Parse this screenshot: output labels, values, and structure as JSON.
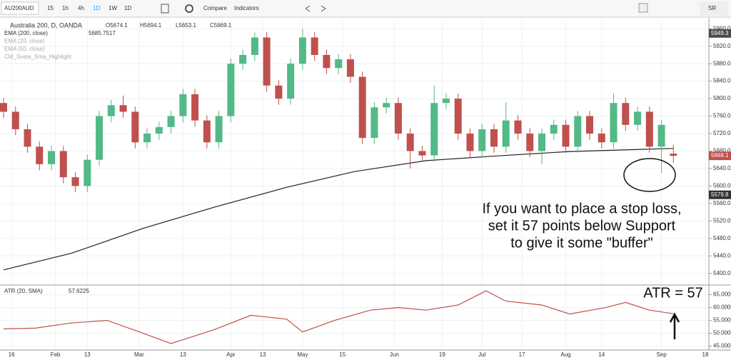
{
  "toolbar": {
    "symbol": "AU200AUD",
    "buttons": [
      "15",
      "1h",
      "4h",
      "1D",
      "1W",
      "1D",
      "Compare",
      "Indicators"
    ],
    "account": "SR"
  },
  "chart_data": [
    {
      "type": "candlestick",
      "title": "Australia 200, D, OANDA",
      "ohlc_labels": [
        "O5674.1",
        "H5694.1",
        "L5653.1",
        "C5669.1"
      ],
      "x": [
        0,
        3,
        6,
        9,
        12,
        15,
        18,
        21,
        24,
        27,
        30,
        33,
        36,
        39,
        42,
        45,
        48,
        51,
        54,
        57,
        60,
        63,
        66,
        69,
        72,
        75,
        78,
        81,
        84,
        87,
        90,
        93,
        96,
        99,
        102,
        105,
        108,
        111,
        114,
        117,
        120,
        123,
        126,
        129,
        132,
        135,
        138,
        141,
        144,
        147,
        150,
        153,
        156,
        159,
        162,
        165,
        168
      ],
      "open": [
        5790,
        5770,
        5730,
        5690,
        5650,
        5680,
        5620,
        5600,
        5660,
        5760,
        5785,
        5770,
        5700,
        5720,
        5735,
        5760,
        5810,
        5750,
        5700,
        5760,
        5880,
        5900,
        5940,
        5830,
        5800,
        5880,
        5940,
        5900,
        5870,
        5890,
        5850,
        5710,
        5780,
        5790,
        5720,
        5680,
        5670,
        5790,
        5800,
        5720,
        5680,
        5730,
        5690,
        5750,
        5720,
        5680,
        5720,
        5740,
        5690,
        5760,
        5720,
        5700,
        5790,
        5740,
        5770,
        5690,
        5674.1
      ],
      "high": [
        5802,
        5782,
        5742,
        5702,
        5692,
        5692,
        5632,
        5672,
        5772,
        5797,
        5807,
        5782,
        5732,
        5747,
        5772,
        5822,
        5822,
        5762,
        5772,
        5892,
        5912,
        5952,
        5952,
        5842,
        5892,
        5960,
        5952,
        5912,
        5902,
        5902,
        5862,
        5792,
        5802,
        5802,
        5732,
        5692,
        5830,
        5812,
        5812,
        5732,
        5742,
        5742,
        5792,
        5762,
        5732,
        5732,
        5752,
        5752,
        5772,
        5772,
        5732,
        5812,
        5802,
        5782,
        5782,
        5752,
        5694.1
      ],
      "low": [
        5756,
        5716,
        5676,
        5636,
        5636,
        5606,
        5586,
        5586,
        5646,
        5746,
        5756,
        5686,
        5686,
        5706,
        5721,
        5746,
        5736,
        5686,
        5686,
        5746,
        5866,
        5886,
        5816,
        5786,
        5786,
        5866,
        5886,
        5856,
        5856,
        5836,
        5696,
        5696,
        5766,
        5706,
        5640,
        5656,
        5656,
        5776,
        5706,
        5666,
        5666,
        5676,
        5676,
        5706,
        5666,
        5650,
        5706,
        5676,
        5676,
        5706,
        5686,
        5686,
        5726,
        5726,
        5676,
        5630,
        5653.1
      ],
      "close": [
        5770,
        5730,
        5690,
        5650,
        5680,
        5620,
        5600,
        5660,
        5760,
        5785,
        5770,
        5700,
        5720,
        5735,
        5760,
        5810,
        5750,
        5700,
        5760,
        5880,
        5900,
        5940,
        5830,
        5800,
        5880,
        5940,
        5900,
        5870,
        5890,
        5850,
        5710,
        5780,
        5790,
        5720,
        5680,
        5670,
        5790,
        5800,
        5720,
        5680,
        5730,
        5690,
        5750,
        5720,
        5680,
        5720,
        5740,
        5690,
        5760,
        5720,
        5700,
        5790,
        5740,
        5770,
        5690,
        5740,
        5669.1
      ],
      "up_color": "#53b987",
      "down_color": "#c0504d",
      "overlays": [
        {
          "name": "EMA (200, close)",
          "legend_value": 5685.7517,
          "color": "#222222",
          "x": [
            0,
            17,
            35,
            53,
            71,
            88,
            106,
            124,
            142,
            168
          ],
          "values": [
            5408,
            5446,
            5503,
            5552,
            5597,
            5633,
            5658,
            5669,
            5679,
            5686
          ]
        }
      ],
      "hidden_indicators": [
        "EMA (20, close)",
        "EMA (50, close)",
        "CM_Sveta_Sma_Highlight"
      ],
      "xlim": [
        0,
        176
      ],
      "ylim": [
        5375,
        5980
      ],
      "yticks": [
        {
          "value": 5400,
          "label": "5400.0"
        },
        {
          "value": 5440,
          "label": "5440.0"
        },
        {
          "value": 5480,
          "label": "5480.0"
        },
        {
          "value": 5520,
          "label": "5520.0"
        },
        {
          "value": 5560,
          "label": "5560.0"
        },
        {
          "value": 5600,
          "label": "5600.0"
        },
        {
          "value": 5640,
          "label": "5640.0"
        },
        {
          "value": 5680,
          "label": "5680.0"
        },
        {
          "value": 5720,
          "label": "5720.0"
        },
        {
          "value": 5760,
          "label": "5760.0"
        },
        {
          "value": 5800,
          "label": "5800.0"
        },
        {
          "value": 5840,
          "label": "5840.0"
        },
        {
          "value": 5880,
          "label": "5880.0"
        },
        {
          "value": 5920,
          "label": "5920.0"
        },
        {
          "value": 5960,
          "label": "5960.0"
        }
      ],
      "price_markers": [
        {
          "value": 5949.3,
          "color": "#4a4a4a"
        },
        {
          "value": 5669.1,
          "color": "#c0504d"
        },
        {
          "value": 5579.8,
          "color": "#333333"
        }
      ],
      "annotations": [
        "If you want to place a stop loss,",
        "set it 57 points below Support",
        "to give it some \"buffer\""
      ],
      "grid": true
    },
    {
      "type": "line",
      "title": "ATR (20, SMA)",
      "legend_value": 57.6225,
      "color": "#c0504d",
      "x": [
        0,
        8,
        17,
        26,
        35,
        42,
        46,
        53,
        62,
        71,
        75,
        83,
        92,
        99,
        106,
        114,
        121,
        126,
        135,
        142,
        151,
        156,
        162,
        168
      ],
      "values": [
        51.7,
        52,
        54,
        55,
        50,
        46,
        48,
        51.5,
        57,
        55.5,
        50.5,
        55,
        59,
        60,
        59,
        61,
        66.5,
        62.5,
        61,
        57.5,
        60,
        62,
        59,
        57.6
      ],
      "xlim": [
        0,
        176
      ],
      "ylim": [
        43.5,
        68.5
      ],
      "yticks": [
        {
          "value": 45,
          "label": "45.0000"
        },
        {
          "value": 50,
          "label": "50.0000"
        },
        {
          "value": 55,
          "label": "55.0000"
        },
        {
          "value": 60,
          "label": "60.0000"
        },
        {
          "value": 65,
          "label": "65.0000"
        }
      ],
      "xticks": [
        {
          "value": 2,
          "label": "16"
        },
        {
          "value": 13,
          "label": "Feb"
        },
        {
          "value": 21,
          "label": "13"
        },
        {
          "value": 34,
          "label": "Mar"
        },
        {
          "value": 45,
          "label": "13"
        },
        {
          "value": 57,
          "label": "Apr"
        },
        {
          "value": 65,
          "label": "13"
        },
        {
          "value": 75,
          "label": "May"
        },
        {
          "value": 85,
          "label": "15"
        },
        {
          "value": 98,
          "label": "Jun"
        },
        {
          "value": 110,
          "label": "19"
        },
        {
          "value": 120,
          "label": "Jul"
        },
        {
          "value": 130,
          "label": "17"
        },
        {
          "value": 141,
          "label": "Aug"
        },
        {
          "value": 150,
          "label": "14"
        },
        {
          "value": 165,
          "label": "Sep"
        },
        {
          "value": 176,
          "label": "18"
        }
      ],
      "annotation": "ATR = 57",
      "grid": true
    }
  ]
}
